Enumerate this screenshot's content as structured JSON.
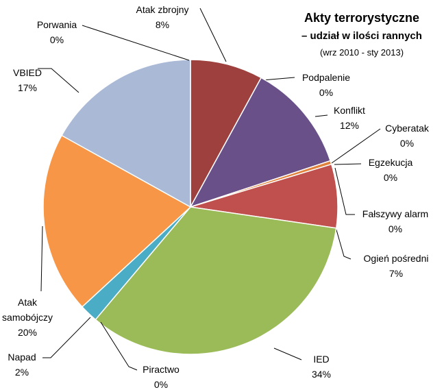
{
  "chart_data": {
    "type": "pie",
    "title": "Akty terrorystyczne",
    "subtitle": "– udział w ilości rannych",
    "note": "(wrz 2010 - sty 2013)",
    "categories": [
      "Atak zbrojny",
      "Podpalenie",
      "Konflikt",
      "Cyberatak",
      "Egzekucja",
      "Fałszywy alarm",
      "Ogień pośredni",
      "IED",
      "Piractwo",
      "Napad",
      "Atak samobójczy",
      "VBIED",
      "Porwania"
    ],
    "values": [
      8,
      0,
      12,
      0,
      0.4,
      0,
      7,
      34,
      0,
      2,
      20,
      17,
      0
    ],
    "value_labels": [
      "8%",
      "0%",
      "12%",
      "0%",
      "0%",
      "0%",
      "7%",
      "34%",
      "0%",
      "2%",
      "20%",
      "17%",
      "0%"
    ],
    "colors": [
      "#9e413e",
      "#7f5fa0",
      "#6a5089",
      "#4f81bd",
      "#e0823c",
      "#8064a2",
      "#c0504d",
      "#9bbb59",
      "#f79646",
      "#4bacc6",
      "#f79646",
      "#a9b9d6",
      "#c0504d"
    ]
  }
}
